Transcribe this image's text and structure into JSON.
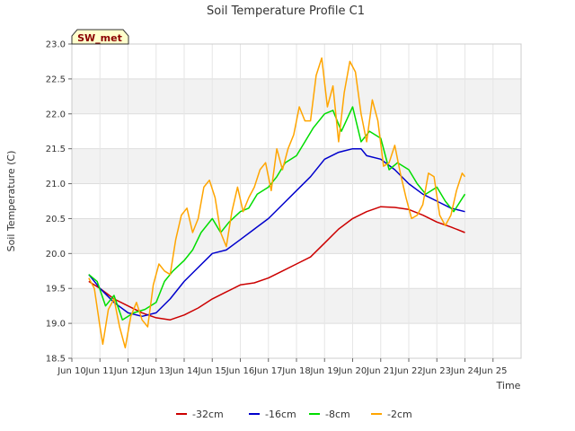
{
  "chart_data": {
    "type": "line",
    "title": "Soil Temperature Profile C1",
    "xlabel": "Time",
    "ylabel": "Soil Temperature (C)",
    "station_label": "SW_met",
    "xlim": [
      0,
      16
    ],
    "ylim": [
      18.5,
      23.0
    ],
    "x_ticks": [
      {
        "x": 0,
        "label": "Jun 10"
      },
      {
        "x": 1,
        "label": "Jun 11"
      },
      {
        "x": 2,
        "label": "Jun 12"
      },
      {
        "x": 3,
        "label": "Jun 13"
      },
      {
        "x": 4,
        "label": "Jun 14"
      },
      {
        "x": 5,
        "label": "Jun 15"
      },
      {
        "x": 6,
        "label": "Jun 16"
      },
      {
        "x": 7,
        "label": "Jun 17"
      },
      {
        "x": 8,
        "label": "Jun 18"
      },
      {
        "x": 9,
        "label": "Jun 19"
      },
      {
        "x": 10,
        "label": "Jun 20"
      },
      {
        "x": 11,
        "label": "Jun 21"
      },
      {
        "x": 12,
        "label": "Jun 22"
      },
      {
        "x": 13,
        "label": "Jun 23"
      },
      {
        "x": 14,
        "label": "Jun 24"
      },
      {
        "x": 15,
        "label": "Jun 25"
      }
    ],
    "y_ticks": [
      18.5,
      19.0,
      19.5,
      20.0,
      20.5,
      21.0,
      21.5,
      22.0,
      22.5,
      23.0
    ],
    "y_tick_labels": [
      "18.5",
      "19.0",
      "19.5",
      "20.0",
      "20.5",
      "21.0",
      "21.5",
      "22.0",
      "22.5",
      "23.0"
    ],
    "grid": true,
    "background_bands": true,
    "legend_position": "bottom",
    "series": [
      {
        "name": "-32cm",
        "color": "#cc0000",
        "x": [
          0.6,
          1.0,
          1.5,
          2.0,
          2.5,
          3.0,
          3.5,
          4.0,
          4.5,
          5.0,
          5.5,
          6.0,
          6.5,
          7.0,
          7.5,
          8.0,
          8.5,
          9.0,
          9.5,
          10.0,
          10.5,
          11.0,
          11.5,
          12.0,
          12.5,
          13.0,
          13.5,
          14.0
        ],
        "y": [
          19.6,
          19.5,
          19.35,
          19.25,
          19.15,
          19.08,
          19.05,
          19.12,
          19.22,
          19.35,
          19.45,
          19.55,
          19.58,
          19.65,
          19.75,
          19.85,
          19.95,
          20.15,
          20.35,
          20.5,
          20.6,
          20.67,
          20.66,
          20.63,
          20.55,
          20.45,
          20.38,
          20.3
        ]
      },
      {
        "name": "-16cm",
        "color": "#0000cc",
        "x": [
          0.6,
          1.0,
          1.5,
          2.0,
          2.5,
          3.0,
          3.5,
          4.0,
          4.5,
          5.0,
          5.5,
          6.0,
          6.5,
          7.0,
          7.5,
          8.0,
          8.5,
          9.0,
          9.5,
          10.0,
          10.3,
          10.5,
          11.0,
          11.5,
          12.0,
          12.5,
          13.0,
          13.5,
          14.0
        ],
        "y": [
          19.7,
          19.5,
          19.3,
          19.15,
          19.1,
          19.15,
          19.35,
          19.6,
          19.8,
          20.0,
          20.05,
          20.2,
          20.35,
          20.5,
          20.7,
          20.9,
          21.1,
          21.35,
          21.45,
          21.5,
          21.5,
          21.4,
          21.35,
          21.2,
          21.0,
          20.85,
          20.75,
          20.65,
          20.6
        ]
      },
      {
        "name": "-8cm",
        "color": "#00dd00",
        "x": [
          0.6,
          0.9,
          1.2,
          1.5,
          1.8,
          2.2,
          2.6,
          3.0,
          3.3,
          3.6,
          4.0,
          4.3,
          4.6,
          5.0,
          5.3,
          5.6,
          6.0,
          6.3,
          6.6,
          7.0,
          7.3,
          7.6,
          8.0,
          8.3,
          8.6,
          9.0,
          9.3,
          9.6,
          10.0,
          10.3,
          10.6,
          11.0,
          11.3,
          11.6,
          12.0,
          12.3,
          12.6,
          13.0,
          13.3,
          13.6,
          14.0
        ],
        "y": [
          19.7,
          19.6,
          19.25,
          19.4,
          19.05,
          19.15,
          19.2,
          19.3,
          19.6,
          19.75,
          19.9,
          20.05,
          20.3,
          20.5,
          20.3,
          20.45,
          20.6,
          20.65,
          20.85,
          20.95,
          21.1,
          21.3,
          21.4,
          21.6,
          21.8,
          22.0,
          22.05,
          21.75,
          22.1,
          21.6,
          21.75,
          21.65,
          21.2,
          21.3,
          21.2,
          21.0,
          20.85,
          20.95,
          20.75,
          20.6,
          20.85
        ]
      },
      {
        "name": "-2cm",
        "color": "#ffa500",
        "x": [
          0.6,
          0.8,
          1.0,
          1.1,
          1.3,
          1.5,
          1.7,
          1.9,
          2.1,
          2.3,
          2.5,
          2.7,
          2.9,
          3.1,
          3.3,
          3.5,
          3.7,
          3.9,
          4.1,
          4.3,
          4.5,
          4.7,
          4.9,
          5.1,
          5.3,
          5.5,
          5.7,
          5.9,
          6.1,
          6.3,
          6.5,
          6.7,
          6.9,
          7.1,
          7.3,
          7.5,
          7.7,
          7.9,
          8.1,
          8.3,
          8.5,
          8.7,
          8.9,
          9.1,
          9.3,
          9.5,
          9.7,
          9.9,
          10.1,
          10.3,
          10.5,
          10.7,
          10.9,
          11.1,
          11.3,
          11.5,
          11.7,
          11.9,
          12.1,
          12.3,
          12.5,
          12.7,
          12.9,
          13.1,
          13.3,
          13.5,
          13.7,
          13.9,
          14.0
        ],
        "y": [
          19.65,
          19.5,
          18.95,
          18.7,
          19.2,
          19.35,
          18.95,
          18.65,
          19.1,
          19.3,
          19.05,
          18.95,
          19.55,
          19.85,
          19.75,
          19.7,
          20.2,
          20.55,
          20.65,
          20.3,
          20.5,
          20.95,
          21.05,
          20.8,
          20.3,
          20.1,
          20.6,
          20.95,
          20.6,
          20.8,
          20.95,
          21.2,
          21.3,
          20.9,
          21.5,
          21.2,
          21.5,
          21.7,
          22.1,
          21.9,
          21.9,
          22.55,
          22.8,
          22.1,
          22.4,
          21.6,
          22.3,
          22.75,
          22.6,
          22.0,
          21.6,
          22.2,
          21.9,
          21.25,
          21.3,
          21.55,
          21.15,
          20.8,
          20.5,
          20.55,
          20.7,
          21.15,
          21.1,
          20.55,
          20.4,
          20.55,
          20.9,
          21.15,
          21.1
        ]
      }
    ]
  }
}
